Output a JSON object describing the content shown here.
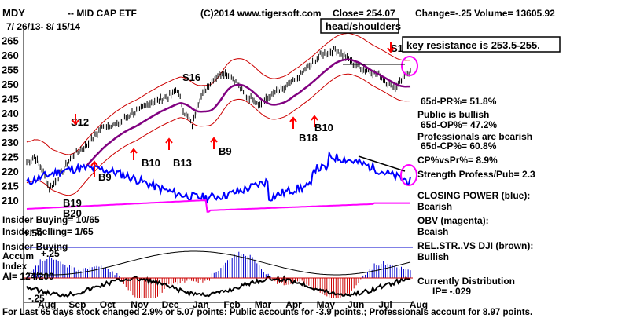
{
  "header": {
    "symbol": "MDY",
    "name": "-- MID CAP ETF",
    "copyright": "(C)2014 www.tigersoft.com",
    "close": "Close=  254.07",
    "change": "Change=-.25",
    "volume": "Volume=  13605.92",
    "date_range": "7/ 26/13- 8/ 15/14"
  },
  "chart_data": {
    "type": "line",
    "title": "MDY -- MID CAP ETF",
    "price_axis": {
      "ticks": [
        210,
        215,
        220,
        225,
        230,
        235,
        240,
        245,
        250,
        255,
        260,
        265
      ],
      "ylim": [
        207,
        267
      ]
    },
    "months": [
      "Aug",
      "Sep",
      "Oct",
      "Nov",
      "Dec",
      "Jan",
      "Feb",
      "Mar",
      "Apr",
      "May",
      "Jun",
      "Jul",
      "Aug"
    ],
    "price_series": {
      "x": [
        0,
        5,
        10,
        15,
        20,
        25,
        30,
        35,
        40,
        45,
        50,
        55,
        60,
        65,
        70,
        75,
        80,
        85,
        90,
        95,
        100,
        105,
        110,
        115,
        120,
        125,
        130,
        135,
        140,
        145,
        150,
        155,
        160,
        165,
        170,
        175,
        180,
        185,
        190,
        195,
        200,
        205,
        210,
        215,
        220,
        225,
        230,
        235,
        240,
        245,
        250,
        255
      ],
      "close": [
        223,
        225,
        221,
        214,
        217,
        221,
        225,
        227,
        229,
        232,
        235,
        236,
        236,
        238,
        240,
        241,
        243,
        244,
        245,
        246,
        248,
        240,
        236,
        245,
        249,
        252,
        254,
        253,
        250,
        246,
        245,
        243,
        245,
        247,
        248,
        250,
        252,
        255,
        257,
        260,
        261,
        262,
        260,
        258,
        256,
        255,
        254,
        253,
        250,
        249,
        252,
        254
      ]
    },
    "indicators": {
      "lower_axis_ticks": [
        "+.50",
        "+.25",
        "-.25"
      ]
    },
    "signals": [
      "B19",
      "B20",
      "B9",
      "S12",
      "B10",
      "B13",
      "S16",
      "B9",
      "B18",
      "B10",
      "S13"
    ],
    "annotations": [
      "head/shoulders",
      "key resistance is 253.5-255."
    ],
    "right_panel": [
      "65d-PR%= 51.8%",
      "Public is bullish",
      "65d-OP%= 47.2%",
      "Professionals are bearish",
      "65d-CP%= 60.8%",
      "CP%vsPr%=  8.9%",
      "Strength Profess/Pub= 2.3",
      "CLOSING POWER (blue):",
      "Bearish",
      "OBV (magenta):",
      "Beaish",
      "REL.STR..VS DJI (brown):",
      "Bullish",
      "Currently Distribution",
      "IP= -.029"
    ],
    "left_panel": [
      "Insider Buying= 10/65",
      "Insider Selling= 1/65",
      "Insider Buying",
      "Accum",
      "Index",
      "AI= 124/200"
    ],
    "footer": "For Last 65 days stock changed  2.9% or  5.07 points:  Public accounts for -3.9 points.;  Professionals account for  8.97 points."
  },
  "colors": {
    "candles": "#000000",
    "bands": "#cc0000",
    "ma": "#800080",
    "closing_power": "#0000ff",
    "obv": "#ff00ff",
    "accum_pos": "#0000cc",
    "accum_neg": "#cc0000",
    "highlight": "#ff00ff",
    "signal": "#ff0000"
  }
}
